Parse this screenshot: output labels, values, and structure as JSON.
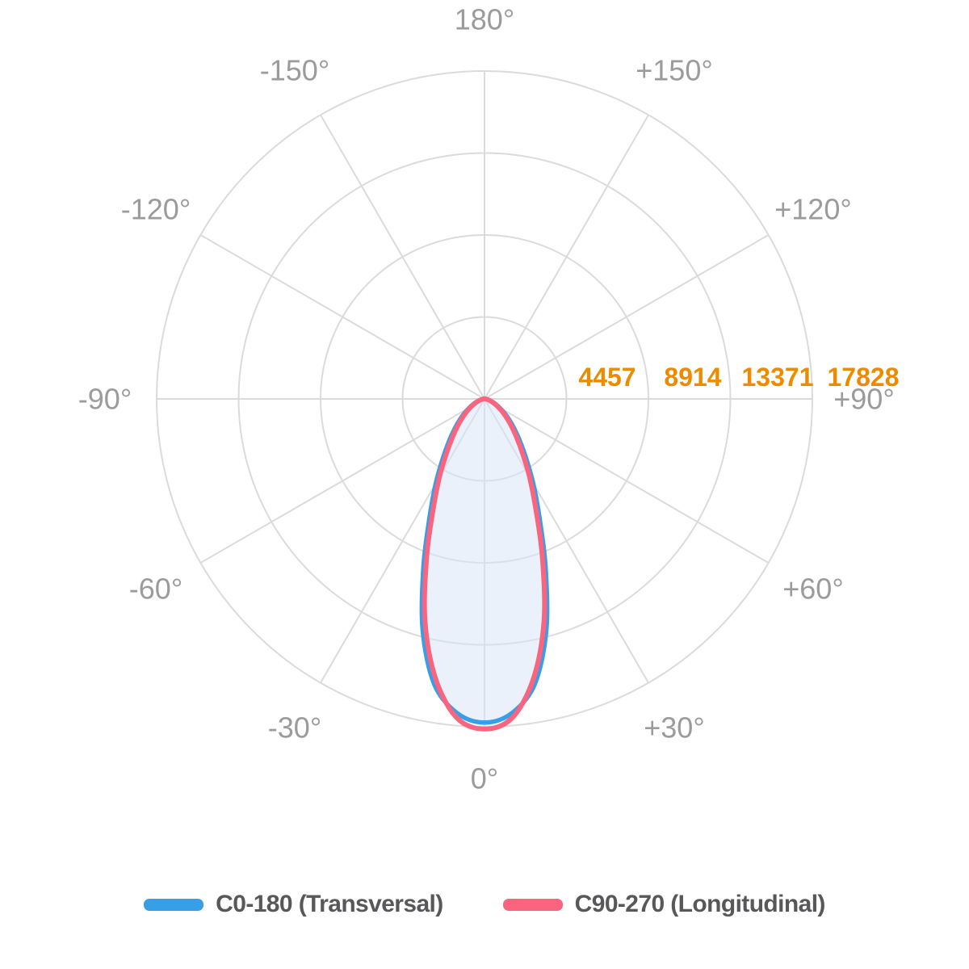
{
  "chart_data": {
    "type": "polar-photometric-curve",
    "title": "",
    "orientation": "0 degrees at bottom, positive angles toward the right side, 180 degrees at top",
    "radial_range": [
      0,
      17828
    ],
    "radial_ticks": [
      4457,
      8914,
      13371,
      17828
    ],
    "grid": {
      "rings": 4,
      "spoke_step_deg": 30,
      "visible": true
    },
    "angles_deg": [
      -90,
      -85,
      -80,
      -75,
      -70,
      -65,
      -60,
      -55,
      -50,
      -45,
      -40,
      -35,
      -30,
      -25,
      -20,
      -15,
      -10,
      -5,
      0,
      5,
      10,
      15,
      20,
      25,
      30,
      35,
      40,
      45,
      50,
      55,
      60,
      65,
      70,
      75,
      80,
      85,
      90
    ],
    "series": [
      {
        "name": "C0-180 (Transversal)",
        "color": "#389EE5",
        "values": [
          50,
          95,
          175,
          290,
          450,
          670,
          950,
          1300,
          1750,
          2300,
          3000,
          3950,
          5300,
          7050,
          9700,
          13000,
          15750,
          17150,
          17600,
          17150,
          15750,
          13000,
          9700,
          7050,
          5300,
          3950,
          3000,
          2300,
          1750,
          1300,
          950,
          670,
          450,
          290,
          175,
          95,
          50
        ]
      },
      {
        "name": "C90-270 (Longitudinal)",
        "color": "#F9647F",
        "values": [
          40,
          80,
          150,
          250,
          390,
          580,
          830,
          1150,
          1550,
          2050,
          2700,
          3600,
          4900,
          6600,
          9200,
          12500,
          15400,
          17400,
          17950,
          17400,
          15400,
          12500,
          9200,
          6600,
          4900,
          3600,
          2700,
          2050,
          1550,
          1150,
          830,
          580,
          390,
          250,
          150,
          80,
          40
        ]
      }
    ],
    "angle_labels": [
      {
        "angle_deg": 180,
        "text": "180°"
      },
      {
        "angle_deg": -150,
        "text": "-150°"
      },
      {
        "angle_deg": 150,
        "text": "+150°"
      },
      {
        "angle_deg": -120,
        "text": "-120°"
      },
      {
        "angle_deg": 120,
        "text": "+120°"
      },
      {
        "angle_deg": -90,
        "text": "-90°"
      },
      {
        "angle_deg": 90,
        "text": "+90°"
      },
      {
        "angle_deg": -60,
        "text": "-60°"
      },
      {
        "angle_deg": 60,
        "text": "+60°"
      },
      {
        "angle_deg": -30,
        "text": "-30°"
      },
      {
        "angle_deg": 30,
        "text": "+30°"
      },
      {
        "angle_deg": 0,
        "text": "0°"
      }
    ],
    "legend_position": "bottom"
  },
  "colors": {
    "background": "#FFFFFF",
    "grid": "#DBDBDB",
    "angle_label": "#9B9B9B",
    "radial_tick": "#ED8B00",
    "series_fill": "#D6E6F9",
    "legend_text": "#58585B"
  },
  "legend": {
    "items": [
      {
        "label": "C0-180 (Transversal)",
        "color": "#389EE5"
      },
      {
        "label": "C90-270 (Longitudinal)",
        "color": "#F9647F"
      }
    ]
  }
}
